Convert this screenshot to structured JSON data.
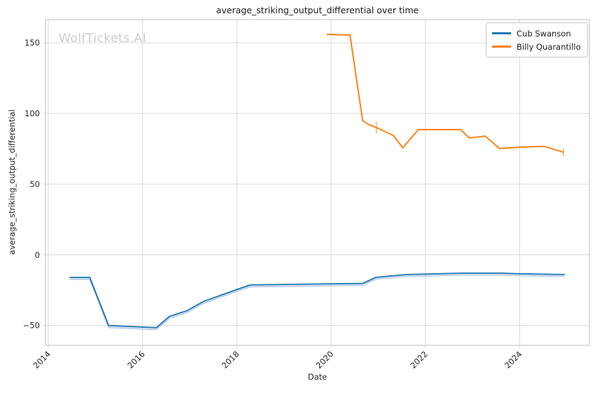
{
  "watermark": {
    "text": "WolfTickets.AI"
  },
  "colors": {
    "series_blue": "#1f77b4",
    "series_blue_light": "#aec7e8",
    "series_orange": "#ff7f0e",
    "series_orange_light": "#ffbb78",
    "grid": "#d9d9d9",
    "spine": "#c8c8c8",
    "text": "#262626",
    "watermark": "#cbcbcb",
    "background": "#ffffff"
  },
  "chart_data": {
    "type": "line",
    "title": "average_striking_output_differential over time",
    "xlabel": "Date",
    "ylabel": "average_striking_output_differential",
    "grid": true,
    "legend_position": "upper right",
    "xlim": [
      2013.94,
      2025.48
    ],
    "ylim": [
      -64,
      166.4
    ],
    "x_ticks": [
      2014,
      2016,
      2018,
      2020,
      2022,
      2024
    ],
    "x_tick_labels": [
      "2014",
      "2016",
      "2018",
      "2020",
      "2022",
      "2024"
    ],
    "y_ticks": [
      150,
      100,
      50,
      0,
      -50
    ],
    "y_tick_labels": [
      "150",
      "100",
      "50",
      "0",
      "−50"
    ],
    "series": [
      {
        "name": "Cub Swanson",
        "color": "#1f77b4",
        "points": [
          [
            2014.46,
            -16
          ],
          [
            2014.88,
            -16
          ],
          [
            2015.28,
            -50
          ],
          [
            2016.29,
            -51.5
          ],
          [
            2016.57,
            -43.5
          ],
          [
            2016.94,
            -39.5
          ],
          [
            2017.29,
            -33
          ],
          [
            2018.0,
            -24.5
          ],
          [
            2018.28,
            -21.3
          ],
          [
            2020.67,
            -20.2
          ],
          [
            2020.95,
            -15.9
          ],
          [
            2021.6,
            -13.9
          ],
          [
            2022.0,
            -13.6
          ],
          [
            2022.8,
            -12.9
          ],
          [
            2023.6,
            -12.9
          ],
          [
            2024.05,
            -13.4
          ],
          [
            2024.95,
            -13.9
          ]
        ]
      },
      {
        "name": "Billy Quarantillo",
        "color": "#ff7f0e",
        "points": [
          [
            2019.92,
            156
          ],
          [
            2020.4,
            155.5
          ],
          [
            2020.67,
            95
          ],
          [
            2020.78,
            92.5
          ],
          [
            2021.0,
            89.5
          ],
          [
            2021.32,
            84.5
          ],
          [
            2021.52,
            75.7
          ],
          [
            2021.85,
            88.6
          ],
          [
            2022.75,
            88.6
          ],
          [
            2022.93,
            82.7
          ],
          [
            2023.27,
            84.0
          ],
          [
            2023.57,
            75.3
          ],
          [
            2024.02,
            76.2
          ],
          [
            2024.52,
            76.7
          ],
          [
            2024.92,
            72.7
          ]
        ]
      }
    ],
    "underlay": {
      "series_index": 0,
      "color": "#aec7e8",
      "value_offset": -1.3
    },
    "error_ticks": [
      {
        "x": 2020.96,
        "y": 90.0,
        "half": 4.2,
        "color": "#ffbb78"
      },
      {
        "x": 2024.93,
        "y": 72.5,
        "half": 2.8,
        "color": "#ffbb78"
      }
    ]
  }
}
